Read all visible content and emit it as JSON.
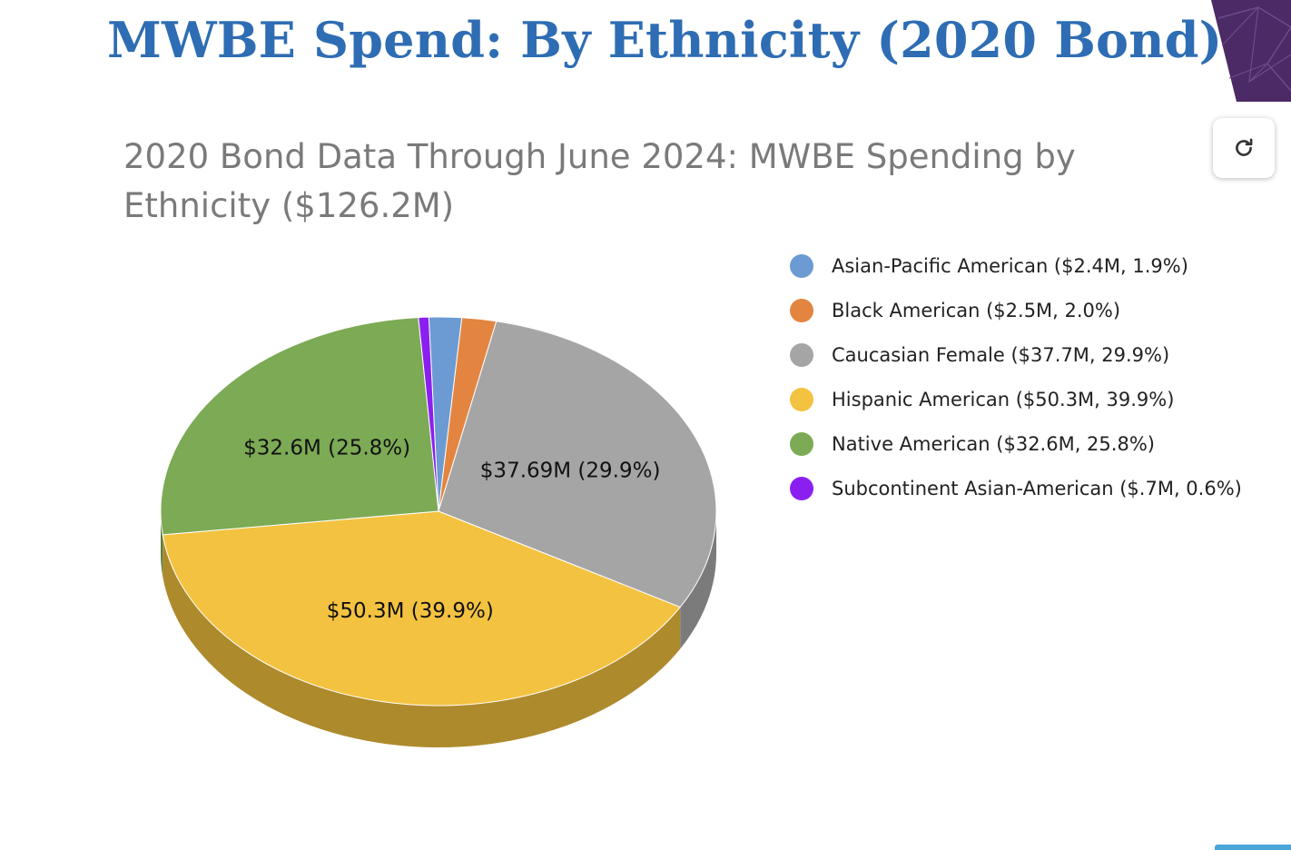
{
  "page": {
    "title": "MWBE Spend: By Ethnicity (2020 Bond)",
    "title_color": "#2e6db3"
  },
  "controls": {
    "reload_icon": "reload-icon"
  },
  "chart_data": {
    "type": "pie",
    "title": "2020 Bond Data Through June 2024: MWBE Spending by Ethnicity ($126.2M)",
    "legend_position": "right",
    "style": "3d",
    "slices": [
      {
        "legend": "Asian-Pacific American ($2.4M, 1.9%)",
        "value": 2.4,
        "percent": 1.9,
        "color": "#6b9bd2",
        "side_color": "#4f76a3",
        "data_label": ""
      },
      {
        "legend": "Black American ($2.5M, 2.0%)",
        "value": 2.5,
        "percent": 2.0,
        "color": "#e38540",
        "side_color": "#a95f2a",
        "data_label": ""
      },
      {
        "legend": "Caucasian Female ($37.7M, 29.9%)",
        "value": 37.69,
        "percent": 29.9,
        "color": "#a5a5a5",
        "side_color": "#7b7b7b",
        "data_label": "$37.69M (29.9%)"
      },
      {
        "legend": "Hispanic American ($50.3M, 39.9%)",
        "value": 50.3,
        "percent": 39.9,
        "color": "#f3c240",
        "side_color": "#ad8a2c",
        "data_label": "$50.3M (39.9%)"
      },
      {
        "legend": "Native American ($32.6M, 25.8%)",
        "value": 32.6,
        "percent": 25.8,
        "color": "#7caa55",
        "side_color": "#5a7d3e",
        "data_label": "$32.6M (25.8%)"
      },
      {
        "legend": "Subcontinent Asian-American ($.7M, 0.6%)",
        "value": 0.7,
        "percent": 0.6,
        "color": "#8b1ff0",
        "side_color": "#6214ad",
        "data_label": ""
      }
    ]
  }
}
